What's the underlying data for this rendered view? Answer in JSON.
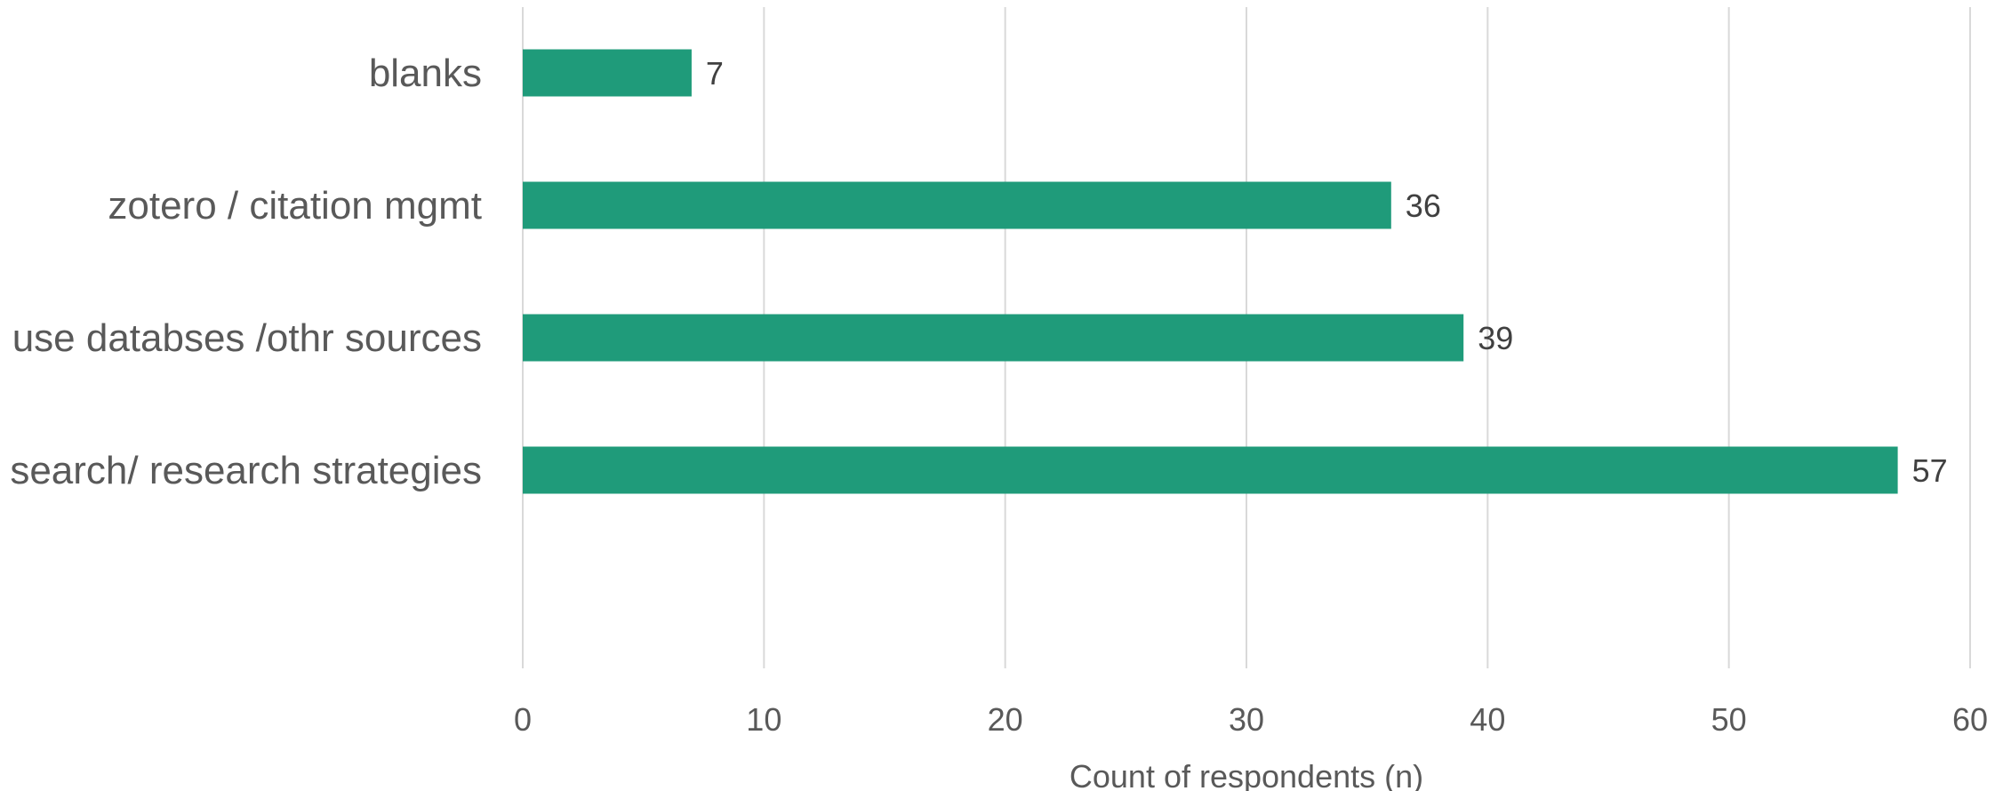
{
  "chart_data": {
    "type": "bar",
    "orientation": "horizontal",
    "categories": [
      "blanks",
      "zotero / citation mgmt",
      "use databses /othr sources",
      "search/ research strategies"
    ],
    "values": [
      7,
      36,
      39,
      57
    ],
    "xlabel": "Count of respondents (n)",
    "xlim": [
      0,
      60
    ],
    "xticks": [
      0,
      10,
      20,
      30,
      40,
      50,
      60
    ],
    "grid": "vertical",
    "legend": "none",
    "bar_color": "#1f9b7a"
  }
}
